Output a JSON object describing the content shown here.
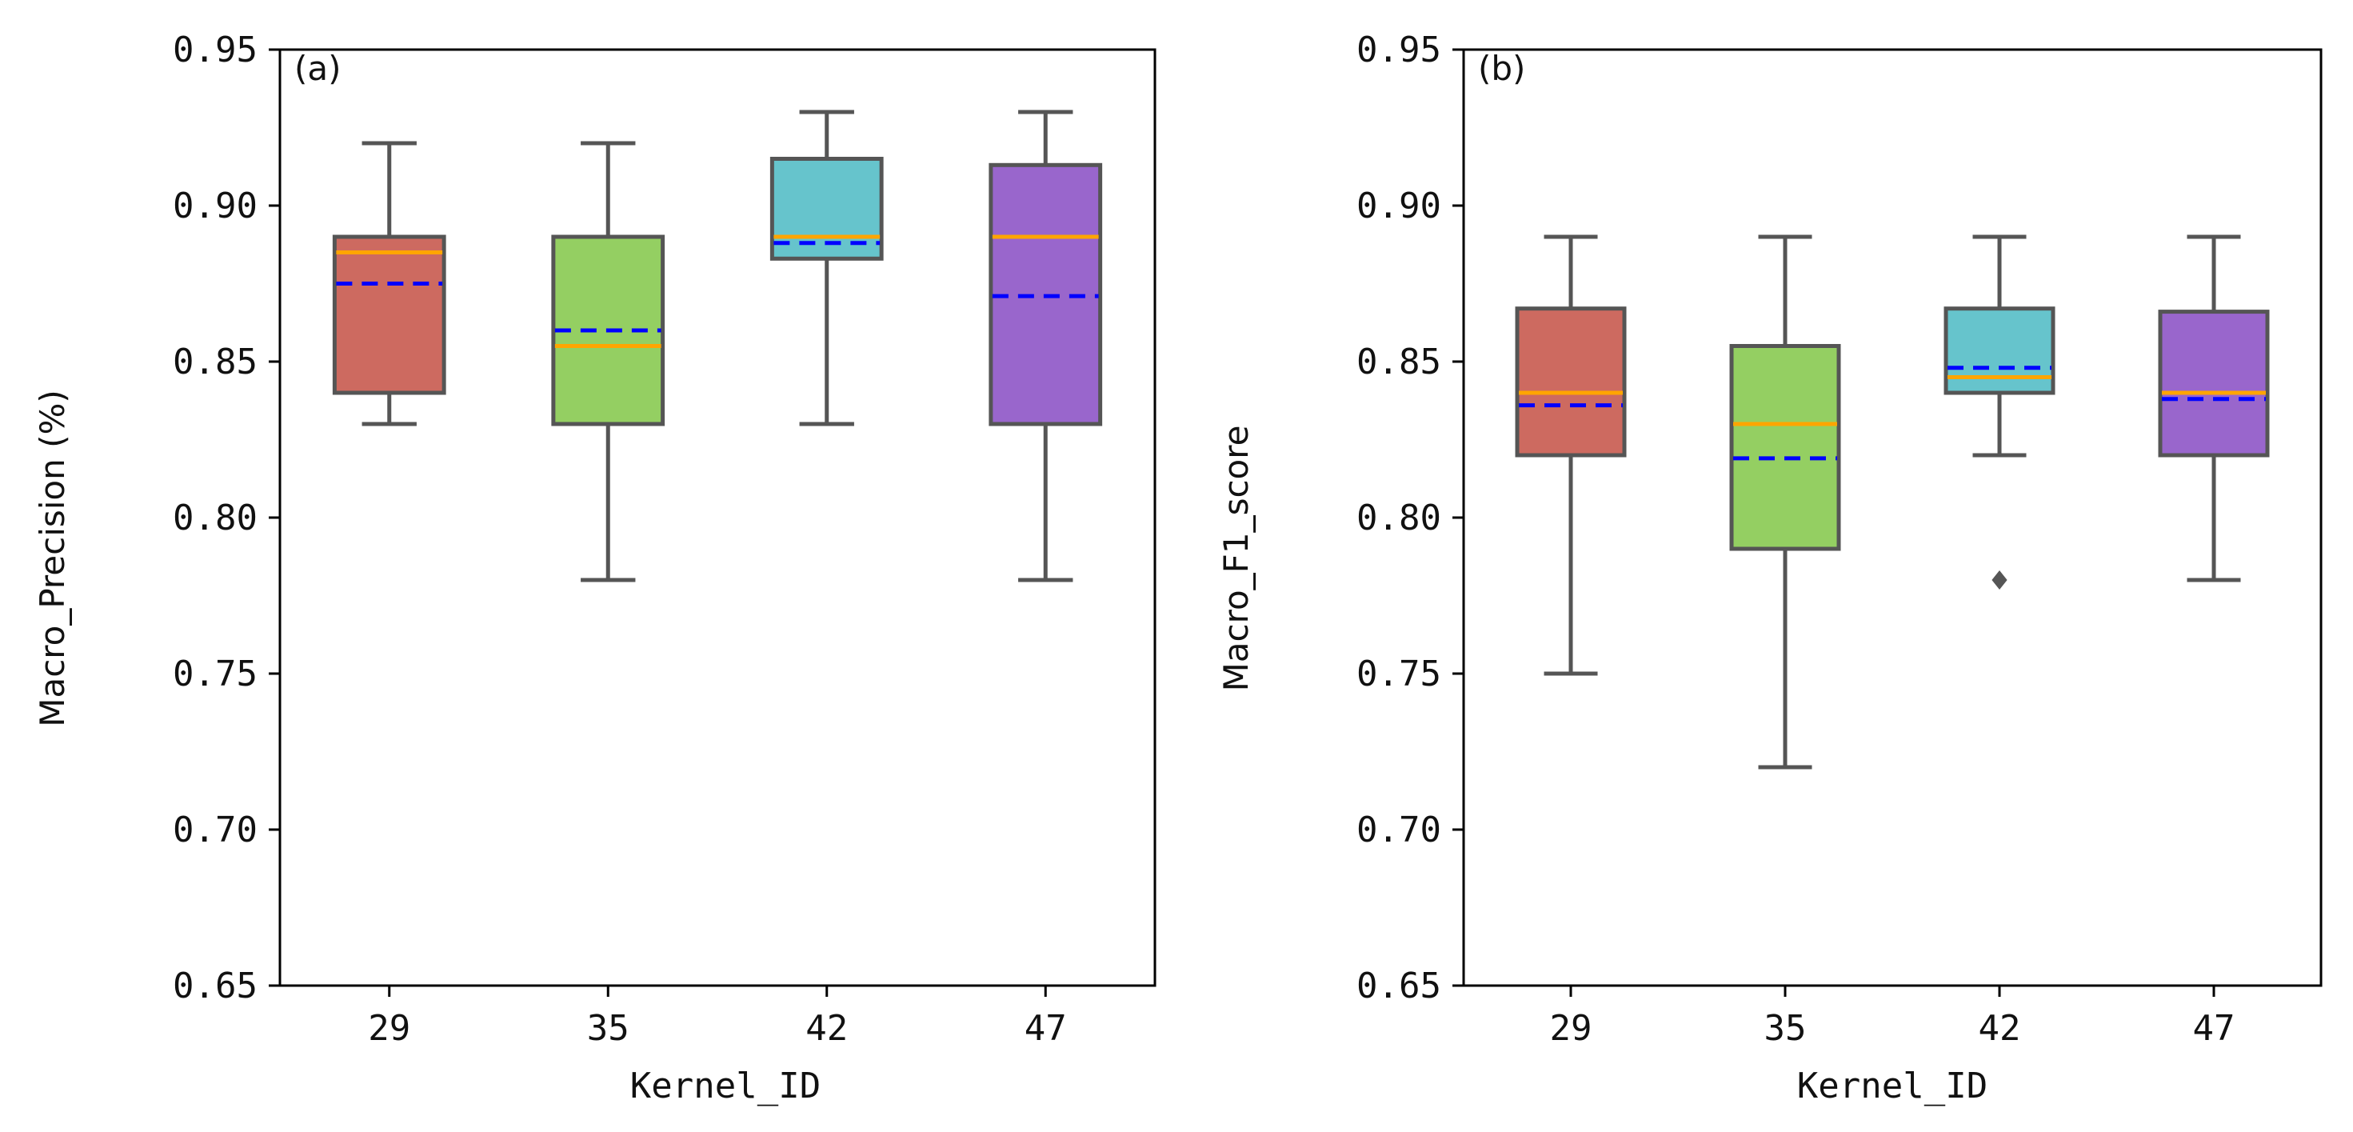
{
  "chart_data": [
    {
      "type": "box",
      "panel_label": "(a)",
      "xlabel": "Kernel_ID",
      "ylabel": "Macro_Precision (%)",
      "ylim": [
        0.65,
        0.95
      ],
      "yticks": [
        0.65,
        0.7,
        0.75,
        0.8,
        0.85,
        0.9,
        0.95
      ],
      "ytick_labels": [
        "0.65",
        "0.70",
        "0.75",
        "0.80",
        "0.85",
        "0.90",
        "0.95"
      ],
      "categories": [
        "29",
        "35",
        "42",
        "47"
      ],
      "colors": [
        "#cd6a60",
        "#94cf62",
        "#66c4cc",
        "#9966cc"
      ],
      "boxes": [
        {
          "whisker_low": 0.83,
          "q1": 0.84,
          "median": 0.885,
          "mean": 0.875,
          "q3": 0.89,
          "whisker_high": 0.92,
          "fliers": []
        },
        {
          "whisker_low": 0.78,
          "q1": 0.83,
          "median": 0.855,
          "mean": 0.86,
          "q3": 0.89,
          "whisker_high": 0.92,
          "fliers": []
        },
        {
          "whisker_low": 0.83,
          "q1": 0.883,
          "median": 0.89,
          "mean": 0.888,
          "q3": 0.915,
          "whisker_high": 0.93,
          "fliers": []
        },
        {
          "whisker_low": 0.78,
          "q1": 0.83,
          "median": 0.89,
          "mean": 0.871,
          "q3": 0.913,
          "whisker_high": 0.93,
          "fliers": []
        }
      ]
    },
    {
      "type": "box",
      "panel_label": "(b)",
      "xlabel": "Kernel_ID",
      "ylabel": "Macro_F1_score",
      "ylim": [
        0.65,
        0.95
      ],
      "yticks": [
        0.65,
        0.7,
        0.75,
        0.8,
        0.85,
        0.9,
        0.95
      ],
      "ytick_labels": [
        "0.65",
        "0.70",
        "0.75",
        "0.80",
        "0.85",
        "0.90",
        "0.95"
      ],
      "categories": [
        "29",
        "35",
        "42",
        "47"
      ],
      "colors": [
        "#cd6a60",
        "#94cf62",
        "#66c4cc",
        "#9966cc"
      ],
      "boxes": [
        {
          "whisker_low": 0.75,
          "q1": 0.82,
          "median": 0.84,
          "mean": 0.836,
          "q3": 0.867,
          "whisker_high": 0.89,
          "fliers": []
        },
        {
          "whisker_low": 0.72,
          "q1": 0.79,
          "median": 0.83,
          "mean": 0.819,
          "q3": 0.855,
          "whisker_high": 0.89,
          "fliers": []
        },
        {
          "whisker_low": 0.82,
          "q1": 0.84,
          "median": 0.845,
          "mean": 0.848,
          "q3": 0.867,
          "whisker_high": 0.89,
          "fliers": [
            0.78
          ]
        },
        {
          "whisker_low": 0.78,
          "q1": 0.82,
          "median": 0.84,
          "mean": 0.838,
          "q3": 0.866,
          "whisker_high": 0.89,
          "fliers": []
        }
      ]
    }
  ]
}
